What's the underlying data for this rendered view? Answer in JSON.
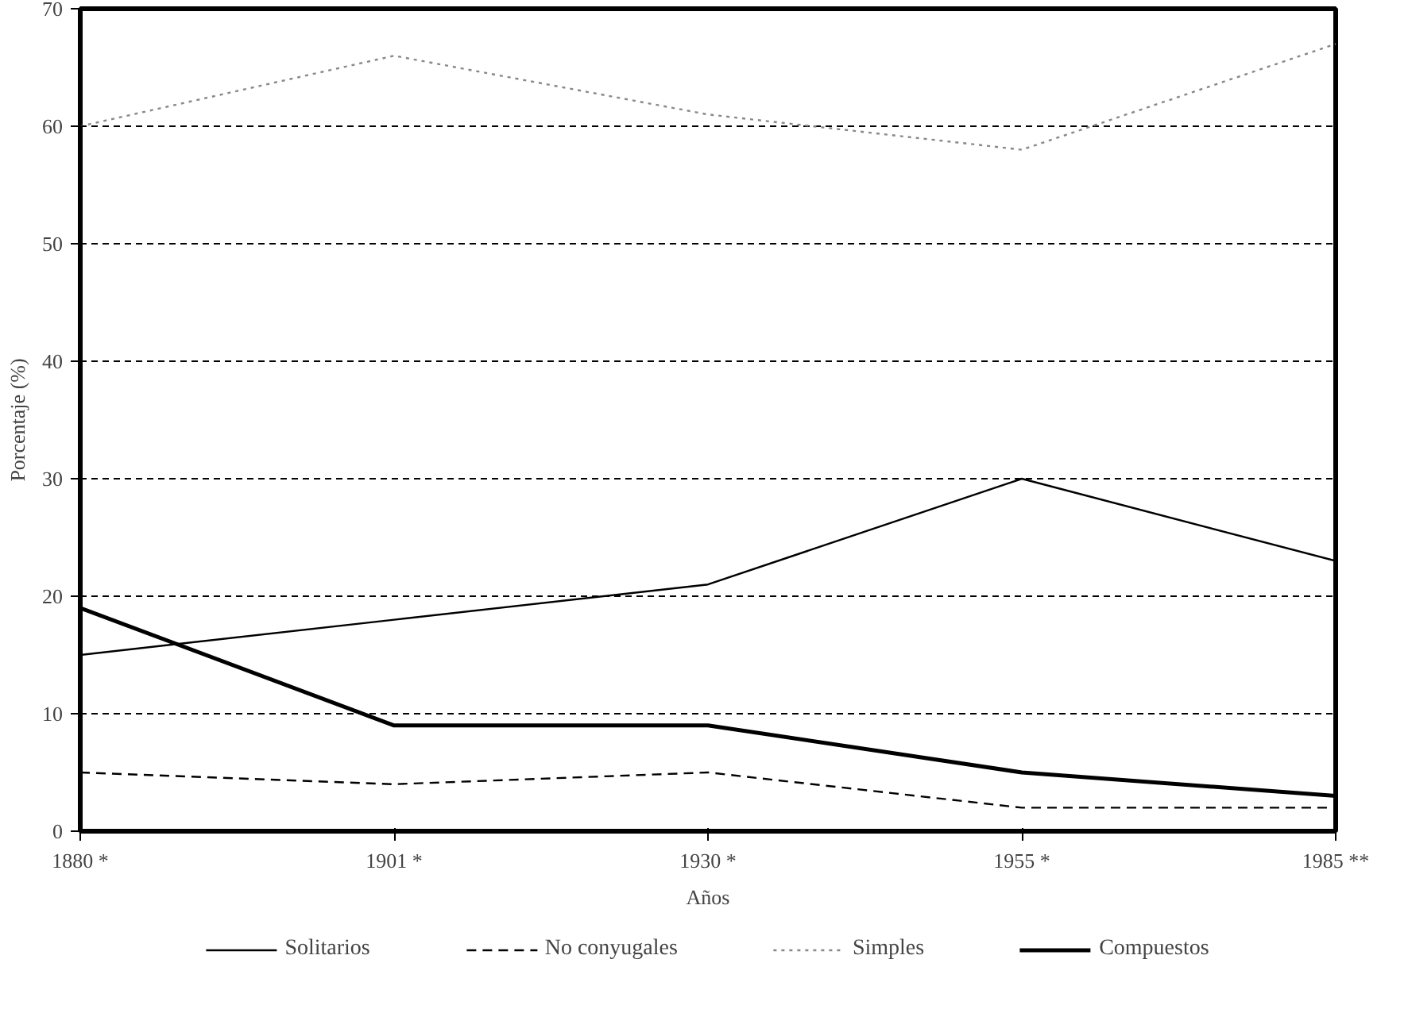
{
  "chart_data": {
    "type": "line",
    "xlabel": "Años",
    "ylabel": "Porcentaje (%)",
    "categories": [
      "1880 *",
      "1901 *",
      "1930 *",
      "1955 *",
      "1985 **"
    ],
    "ylim": [
      0,
      70
    ],
    "yticks": [
      0,
      10,
      20,
      30,
      40,
      50,
      60,
      70
    ],
    "grid": "y",
    "legend": "bottom",
    "marker": "none",
    "series": [
      {
        "name": "Solitarios",
        "color": "#000000",
        "line_style": "solid",
        "values": [
          15,
          18,
          21,
          30,
          23
        ]
      },
      {
        "name": "No conyugales",
        "color": "#000000",
        "line_style": "dashed",
        "values": [
          5,
          4,
          5,
          2,
          2
        ]
      },
      {
        "name": "Simples",
        "color": "#888888",
        "line_style": "dotted",
        "values": [
          60,
          66,
          61,
          58,
          67
        ]
      },
      {
        "name": "Compuestos",
        "color": "#000000",
        "line_style": "solid",
        "values": [
          19,
          9,
          9,
          5,
          3
        ]
      }
    ]
  }
}
